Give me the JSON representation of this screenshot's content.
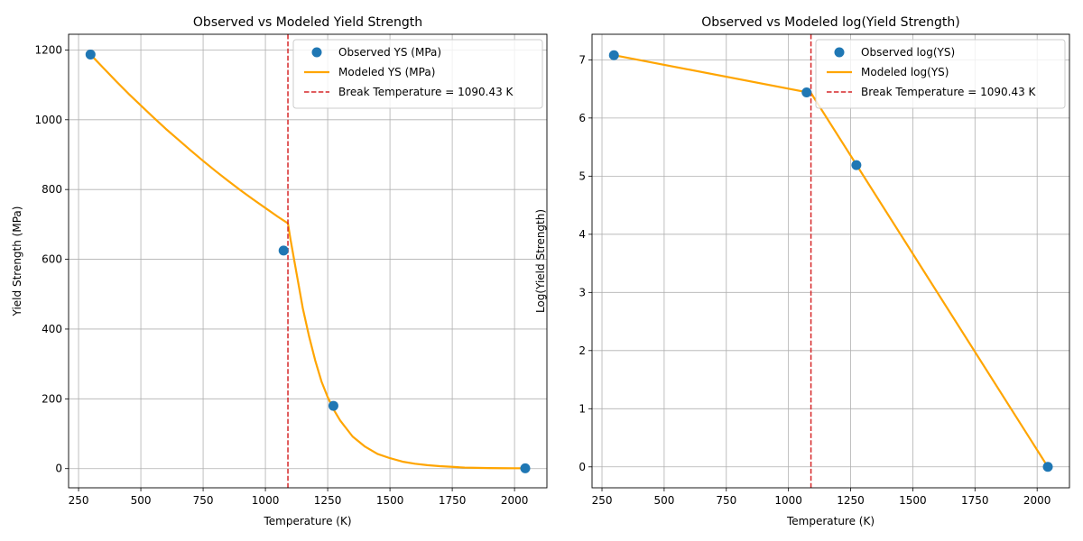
{
  "chart_data": [
    {
      "type": "line",
      "title": "Observed vs Modeled Yield Strength",
      "xlabel": "Temperature (K)",
      "ylabel": "Yield Strength (MPa)",
      "xlim": [
        210,
        2130
      ],
      "ylim": [
        -55,
        1245
      ],
      "xticks": [
        250,
        500,
        750,
        1000,
        1250,
        1500,
        1750,
        2000
      ],
      "yticks": [
        0,
        200,
        400,
        600,
        800,
        1000,
        1200
      ],
      "grid": true,
      "legend_position": "top-right",
      "series": [
        {
          "name": "Observed YS (MPa)",
          "kind": "scatter",
          "color": "#1f77b4",
          "x": [
            298,
            1073,
            1273,
            2043
          ],
          "y": [
            1187,
            625,
            180,
            1
          ]
        },
        {
          "name": "Modeled YS (MPa)",
          "kind": "line",
          "color": "#ffa500",
          "x": [
            298,
            350,
            400,
            450,
            500,
            550,
            600,
            650,
            700,
            750,
            800,
            850,
            900,
            950,
            1000,
            1050,
            1090.43,
            1100,
            1125,
            1150,
            1175,
            1200,
            1225,
            1250,
            1275,
            1300,
            1350,
            1400,
            1450,
            1500,
            1550,
            1600,
            1650,
            1700,
            1750,
            1800,
            1850,
            1900,
            1950,
            2000,
            2043
          ],
          "y": [
            1187,
            1148,
            1111,
            1075,
            1041,
            1007,
            974,
            943,
            912,
            882,
            853,
            825,
            798,
            772,
            747,
            722,
            703,
            660,
            560,
            460,
            380,
            310,
            250,
            205,
            168,
            138,
            92,
            63,
            42,
            30,
            20,
            14,
            10,
            7,
            5,
            3,
            2.2,
            1.6,
            1.2,
            1.0,
            1.0
          ]
        },
        {
          "name": "Break Temperature = 1090.43 K",
          "kind": "vline",
          "color": "#d62728",
          "x": 1090.43
        }
      ]
    },
    {
      "type": "line",
      "title": "Observed vs Modeled log(Yield Strength)",
      "xlabel": "Temperature (K)",
      "ylabel": "Log(Yield Strength)",
      "xlim": [
        210,
        2130
      ],
      "ylim": [
        -0.36,
        7.44
      ],
      "xticks": [
        250,
        500,
        750,
        1000,
        1250,
        1500,
        1750,
        2000
      ],
      "yticks": [
        0,
        1,
        2,
        3,
        4,
        5,
        6,
        7
      ],
      "grid": true,
      "legend_position": "top-right",
      "series": [
        {
          "name": "Observed log(YS)",
          "kind": "scatter",
          "color": "#1f77b4",
          "x": [
            298,
            1073,
            1273,
            2043
          ],
          "y": [
            7.08,
            6.44,
            5.19,
            0.0
          ]
        },
        {
          "name": "Modeled log(YS)",
          "kind": "line",
          "color": "#ffa500",
          "x": [
            298,
            1090.43,
            2043
          ],
          "y": [
            7.08,
            6.43,
            0.0
          ]
        },
        {
          "name": "Break Temperature = 1090.43 K",
          "kind": "vline",
          "color": "#d62728",
          "x": 1090.43
        }
      ]
    }
  ]
}
